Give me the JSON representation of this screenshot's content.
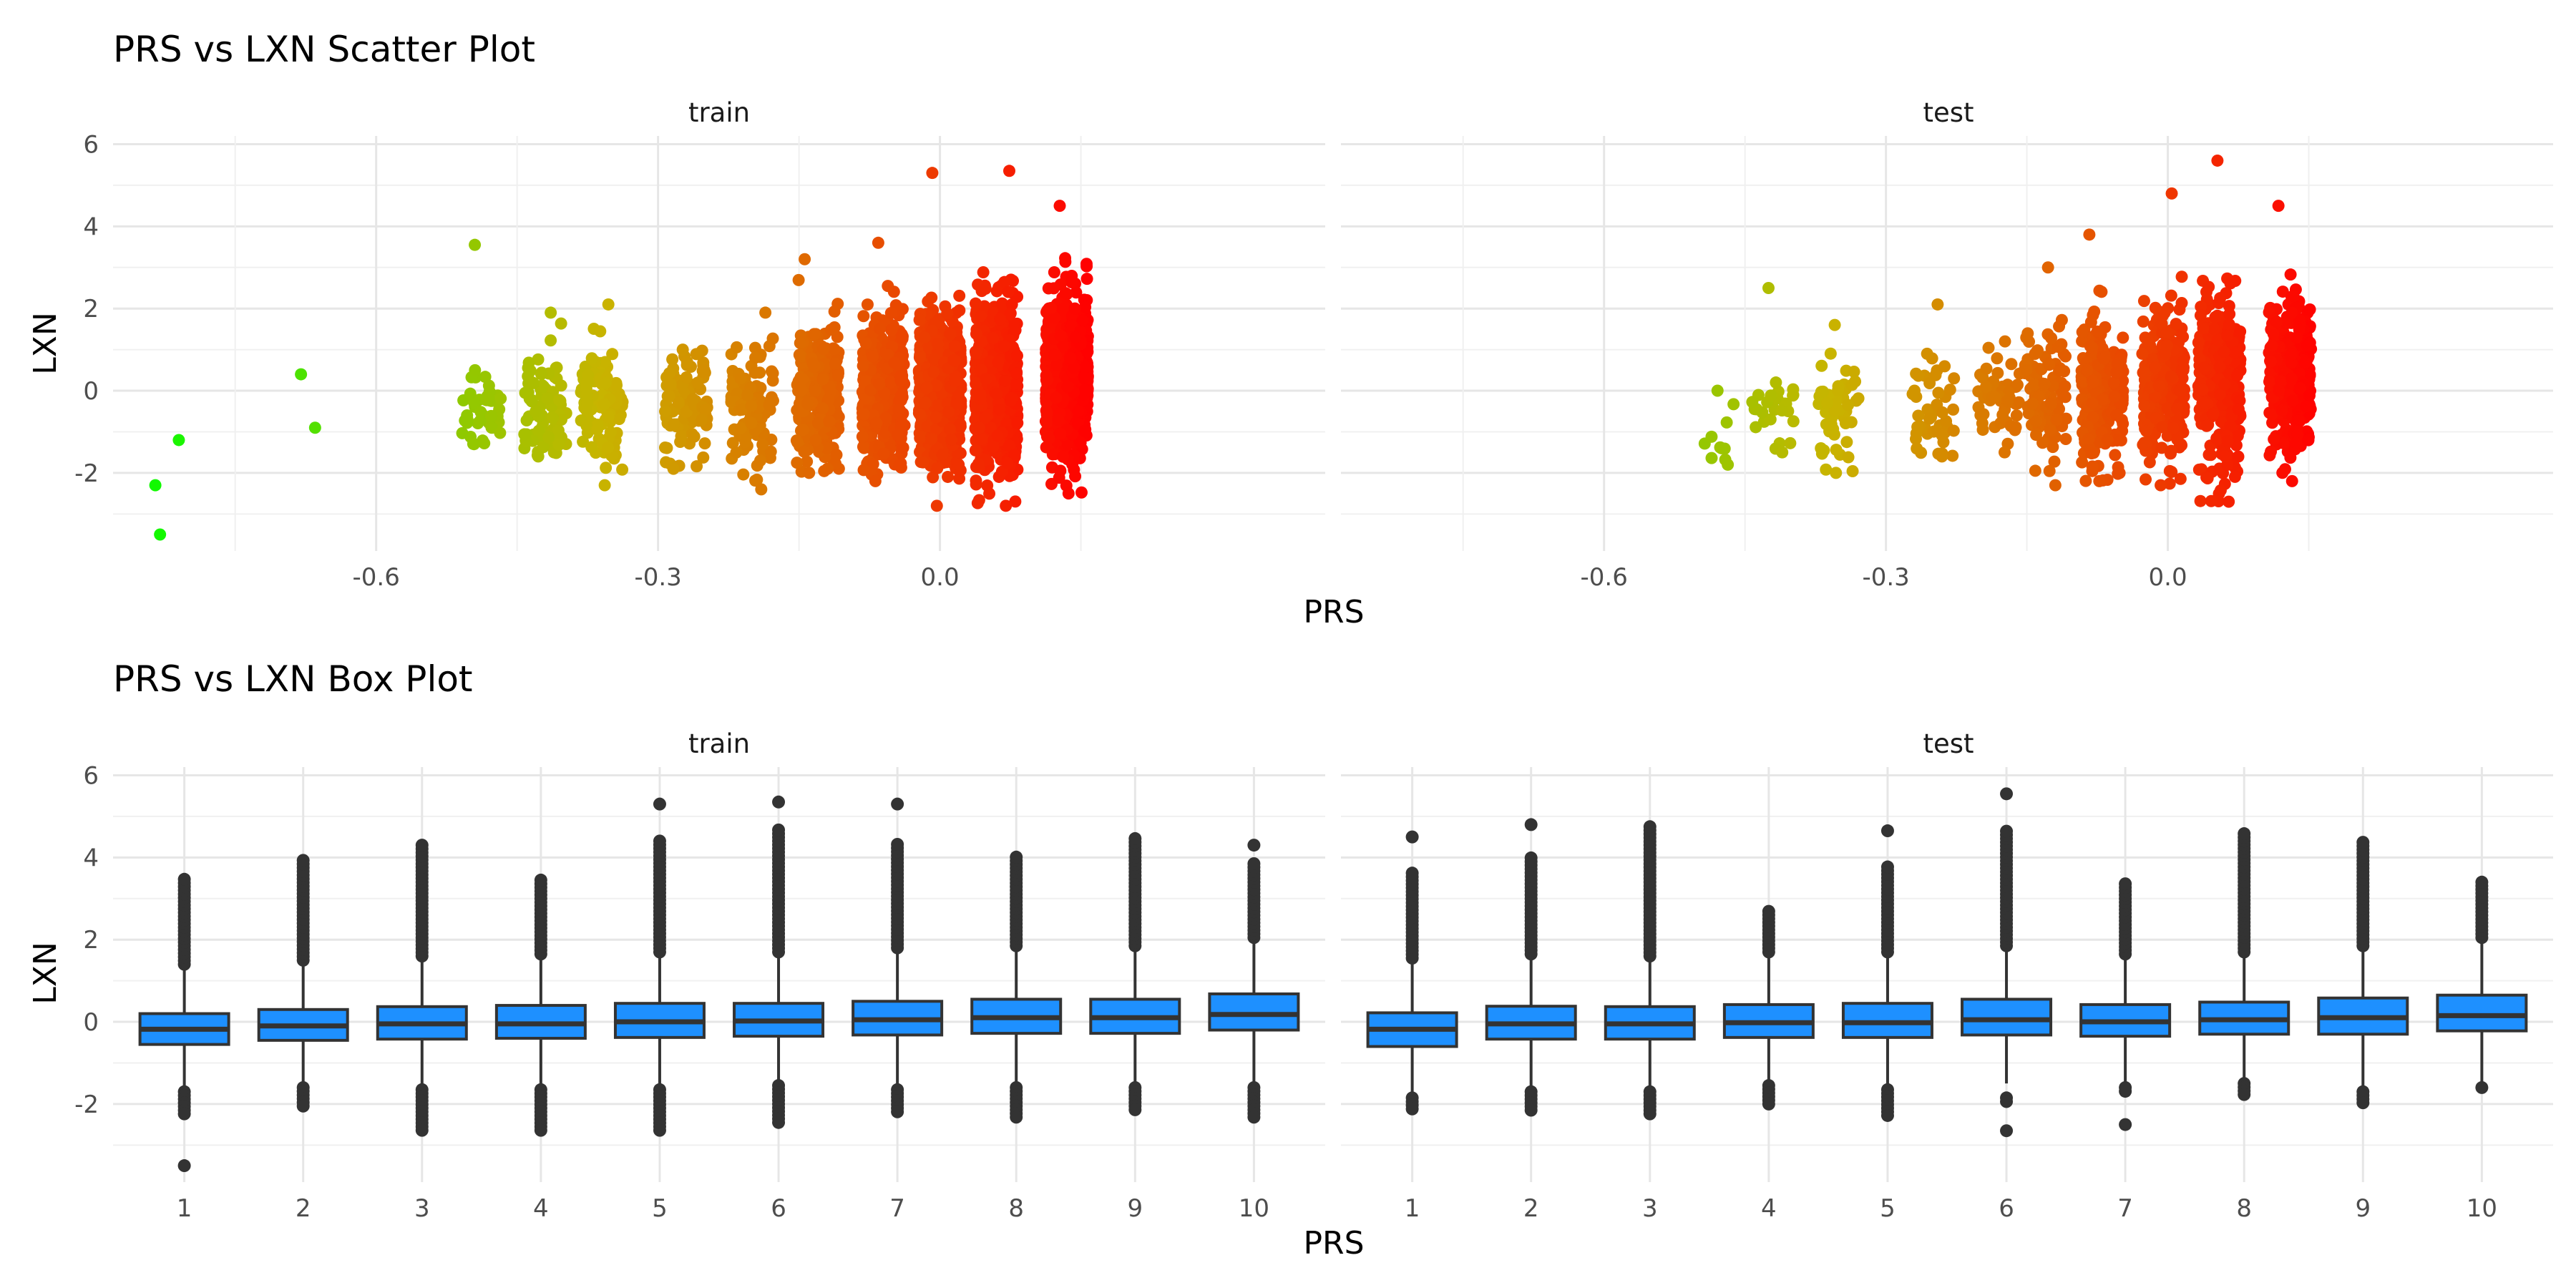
{
  "chart_data": [
    {
      "type": "scatter",
      "title": "PRS vs LXN Scatter Plot",
      "xlabel": "PRS",
      "ylabel": "LXN",
      "facets": [
        "train",
        "test"
      ],
      "x_ticks": [
        "-0.6",
        "-0.3",
        "0.0"
      ],
      "y_ticks": [
        "6",
        "4",
        "2",
        "0",
        "-2"
      ],
      "xlim": [
        -0.88,
        0.41
      ],
      "ylim": [
        -3.9,
        6.2
      ],
      "color_scale": {
        "low": "#00ff00",
        "mid": "#c8b400",
        "high": "#ff0000"
      },
      "grid": true,
      "series": [
        {
          "facet": "train",
          "points": [
            [
              -0.835,
              -2.3
            ],
            [
              -0.83,
              -3.5
            ],
            [
              -0.81,
              -1.2
            ],
            [
              -0.68,
              0.4
            ],
            [
              -0.665,
              -0.9
            ],
            [
              -0.495,
              3.55
            ]
          ],
          "clusters": [
            {
              "x": -0.49,
              "n": 40,
              "mean": -0.4,
              "sd": 0.55,
              "min": -1.3,
              "max": 0.5
            },
            {
              "x": -0.42,
              "n": 80,
              "mean": -0.45,
              "sd": 0.7,
              "min": -1.6,
              "max": 1.9
            },
            {
              "x": -0.36,
              "n": 110,
              "mean": -0.35,
              "sd": 0.75,
              "min": -2.3,
              "max": 2.1
            },
            {
              "x": -0.27,
              "n": 90,
              "mean": -0.3,
              "sd": 0.7,
              "min": -1.9,
              "max": 1.0
            },
            {
              "x": -0.2,
              "n": 110,
              "mean": -0.3,
              "sd": 0.75,
              "min": -2.4,
              "max": 1.9
            },
            {
              "x": -0.13,
              "n": 260,
              "mean": -0.1,
              "sd": 0.8,
              "min": -2.0,
              "max": 3.2
            },
            {
              "x": -0.06,
              "n": 420,
              "mean": 0.0,
              "sd": 0.85,
              "min": -2.2,
              "max": 3.6
            },
            {
              "x": 0.0,
              "n": 650,
              "mean": 0.1,
              "sd": 0.9,
              "min": -2.8,
              "max": 5.3
            },
            {
              "x": 0.06,
              "n": 750,
              "mean": 0.15,
              "sd": 0.95,
              "min": -2.8,
              "max": 5.35
            },
            {
              "x": 0.135,
              "n": 850,
              "mean": 0.3,
              "sd": 0.9,
              "min": -2.5,
              "max": 4.5
            }
          ]
        },
        {
          "facet": "test",
          "points": [
            [
              -0.475,
              -1.4
            ],
            [
              -0.425,
              2.5
            ],
            [
              -0.245,
              2.1
            ]
          ],
          "clusters": [
            {
              "x": -0.48,
              "n": 8,
              "mean": -1.0,
              "sd": 0.6,
              "min": -1.8,
              "max": 0.0
            },
            {
              "x": -0.42,
              "n": 25,
              "mean": -0.6,
              "sd": 0.55,
              "min": -1.5,
              "max": 0.2
            },
            {
              "x": -0.35,
              "n": 50,
              "mean": -0.5,
              "sd": 0.7,
              "min": -2.0,
              "max": 1.6
            },
            {
              "x": -0.25,
              "n": 45,
              "mean": -0.45,
              "sd": 0.6,
              "min": -1.6,
              "max": 0.9
            },
            {
              "x": -0.18,
              "n": 50,
              "mean": -0.3,
              "sd": 0.6,
              "min": -1.5,
              "max": 1.2
            },
            {
              "x": -0.13,
              "n": 110,
              "mean": -0.1,
              "sd": 0.8,
              "min": -2.3,
              "max": 3.0
            },
            {
              "x": -0.07,
              "n": 220,
              "mean": 0.0,
              "sd": 0.85,
              "min": -2.2,
              "max": 3.8
            },
            {
              "x": -0.005,
              "n": 300,
              "mean": 0.1,
              "sd": 0.9,
              "min": -2.3,
              "max": 4.8
            },
            {
              "x": 0.055,
              "n": 340,
              "mean": 0.2,
              "sd": 0.95,
              "min": -2.7,
              "max": 5.6
            },
            {
              "x": 0.13,
              "n": 380,
              "mean": 0.35,
              "sd": 0.85,
              "min": -2.2,
              "max": 4.5
            }
          ]
        }
      ]
    },
    {
      "type": "box",
      "title": "PRS vs LXN Box Plot",
      "xlabel": "PRS",
      "ylabel": "LXN",
      "facets": [
        "train",
        "test"
      ],
      "categories": [
        "1",
        "2",
        "3",
        "4",
        "5",
        "6",
        "7",
        "8",
        "9",
        "10"
      ],
      "y_ticks": [
        "6",
        "4",
        "2",
        "0",
        "-2"
      ],
      "ylim": [
        -3.9,
        6.2
      ],
      "box_color": "#1e90ff",
      "grid": true,
      "series": [
        {
          "facet": "train",
          "boxes": [
            {
              "q1": -0.55,
              "median": -0.18,
              "q3": 0.2,
              "lo": -1.65,
              "hi": 1.3,
              "out_hi": [
                1.4,
                3.55
              ],
              "out_lo": [
                -1.7,
                -2.3
              ],
              "extra_lo": [
                -3.5
              ]
            },
            {
              "q1": -0.45,
              "median": -0.1,
              "q3": 0.3,
              "lo": -1.5,
              "hi": 1.4,
              "out_hi": [
                1.5,
                3.95
              ],
              "out_lo": [
                -1.6,
                -2.05
              ],
              "extra_lo": []
            },
            {
              "q1": -0.42,
              "median": -0.05,
              "q3": 0.37,
              "lo": -1.55,
              "hi": 1.5,
              "out_hi": [
                1.6,
                4.3
              ],
              "out_lo": [
                -1.65,
                -2.7
              ],
              "extra_lo": []
            },
            {
              "q1": -0.4,
              "median": -0.05,
              "q3": 0.4,
              "lo": -1.55,
              "hi": 1.55,
              "out_hi": [
                1.65,
                3.45
              ],
              "out_lo": [
                -1.65,
                -2.65
              ],
              "extra_lo": []
            },
            {
              "q1": -0.38,
              "median": 0.0,
              "q3": 0.45,
              "lo": -1.55,
              "hi": 1.6,
              "out_hi": [
                1.7,
                4.4
              ],
              "out_lo": [
                -1.65,
                -2.7
              ],
              "extra_lo": [],
              "extra_hi": [
                5.3
              ]
            },
            {
              "q1": -0.35,
              "median": 0.02,
              "q3": 0.45,
              "lo": -1.45,
              "hi": 1.6,
              "out_hi": [
                1.7,
                4.75
              ],
              "out_lo": [
                -1.55,
                -2.5
              ],
              "extra_lo": [],
              "extra_hi": [
                5.35
              ]
            },
            {
              "q1": -0.32,
              "median": 0.05,
              "q3": 0.5,
              "lo": -1.55,
              "hi": 1.7,
              "out_hi": [
                1.8,
                4.35
              ],
              "out_lo": [
                -1.65,
                -2.2
              ],
              "extra_lo": [],
              "extra_hi": [
                5.3
              ]
            },
            {
              "q1": -0.28,
              "median": 0.1,
              "q3": 0.55,
              "lo": -1.5,
              "hi": 1.75,
              "out_hi": [
                1.85,
                4.05
              ],
              "out_lo": [
                -1.6,
                -2.35
              ],
              "extra_lo": []
            },
            {
              "q1": -0.28,
              "median": 0.1,
              "q3": 0.55,
              "lo": -1.5,
              "hi": 1.75,
              "out_hi": [
                1.85,
                4.5
              ],
              "out_lo": [
                -1.6,
                -2.2
              ],
              "extra_lo": []
            },
            {
              "q1": -0.2,
              "median": 0.18,
              "q3": 0.68,
              "lo": -1.5,
              "hi": 1.95,
              "out_hi": [
                2.05,
                3.85
              ],
              "out_lo": [
                -1.6,
                -2.4
              ],
              "extra_lo": [],
              "extra_hi": [
                4.3
              ]
            }
          ]
        },
        {
          "facet": "test",
          "boxes": [
            {
              "q1": -0.6,
              "median": -0.18,
              "q3": 0.22,
              "lo": -1.75,
              "hi": 1.45,
              "out_hi": [
                1.55,
                3.7
              ],
              "out_lo": [
                -1.85,
                -2.2
              ],
              "extra_lo": [],
              "extra_hi": [
                4.5
              ]
            },
            {
              "q1": -0.42,
              "median": -0.05,
              "q3": 0.38,
              "lo": -1.6,
              "hi": 1.55,
              "out_hi": [
                1.65,
                4.0
              ],
              "out_lo": [
                -1.7,
                -2.2
              ],
              "extra_lo": [],
              "extra_hi": [
                4.8
              ]
            },
            {
              "q1": -0.42,
              "median": -0.05,
              "q3": 0.37,
              "lo": -1.6,
              "hi": 1.5,
              "out_hi": [
                1.6,
                4.75
              ],
              "out_lo": [
                -1.7,
                -2.25
              ],
              "extra_lo": []
            },
            {
              "q1": -0.38,
              "median": -0.02,
              "q3": 0.42,
              "lo": -1.5,
              "hi": 1.6,
              "out_hi": [
                1.7,
                2.7
              ],
              "out_lo": [
                -1.55,
                -2.0
              ],
              "extra_lo": []
            },
            {
              "q1": -0.38,
              "median": -0.02,
              "q3": 0.45,
              "lo": -1.55,
              "hi": 1.6,
              "out_hi": [
                1.7,
                3.85
              ],
              "out_lo": [
                -1.65,
                -2.3
              ],
              "extra_lo": [],
              "extra_hi": [
                4.65
              ]
            },
            {
              "q1": -0.32,
              "median": 0.05,
              "q3": 0.55,
              "lo": -1.5,
              "hi": 1.75,
              "out_hi": [
                1.85,
                4.7
              ],
              "out_lo": [
                -1.85,
                -2.0
              ],
              "extra_lo": [
                -2.65
              ],
              "extra_hi": [
                5.55
              ]
            },
            {
              "q1": -0.35,
              "median": 0.0,
              "q3": 0.42,
              "lo": -1.5,
              "hi": 1.55,
              "out_hi": [
                1.65,
                3.4
              ],
              "out_lo": [
                -1.6,
                -1.7
              ],
              "extra_lo": [
                -2.5
              ]
            },
            {
              "q1": -0.3,
              "median": 0.05,
              "q3": 0.48,
              "lo": -1.4,
              "hi": 1.6,
              "out_hi": [
                1.7,
                4.6
              ],
              "out_lo": [
                -1.5,
                -1.85
              ],
              "extra_lo": []
            },
            {
              "q1": -0.3,
              "median": 0.1,
              "q3": 0.58,
              "lo": -1.55,
              "hi": 1.75,
              "out_hi": [
                1.85,
                4.45
              ],
              "out_lo": [
                -1.7,
                -2.05
              ],
              "extra_lo": []
            },
            {
              "q1": -0.22,
              "median": 0.15,
              "q3": 0.65,
              "lo": -1.45,
              "hi": 1.95,
              "out_hi": [
                2.05,
                3.4
              ],
              "out_lo": [
                -1.6,
                -1.6
              ],
              "extra_lo": []
            }
          ]
        }
      ]
    }
  ]
}
